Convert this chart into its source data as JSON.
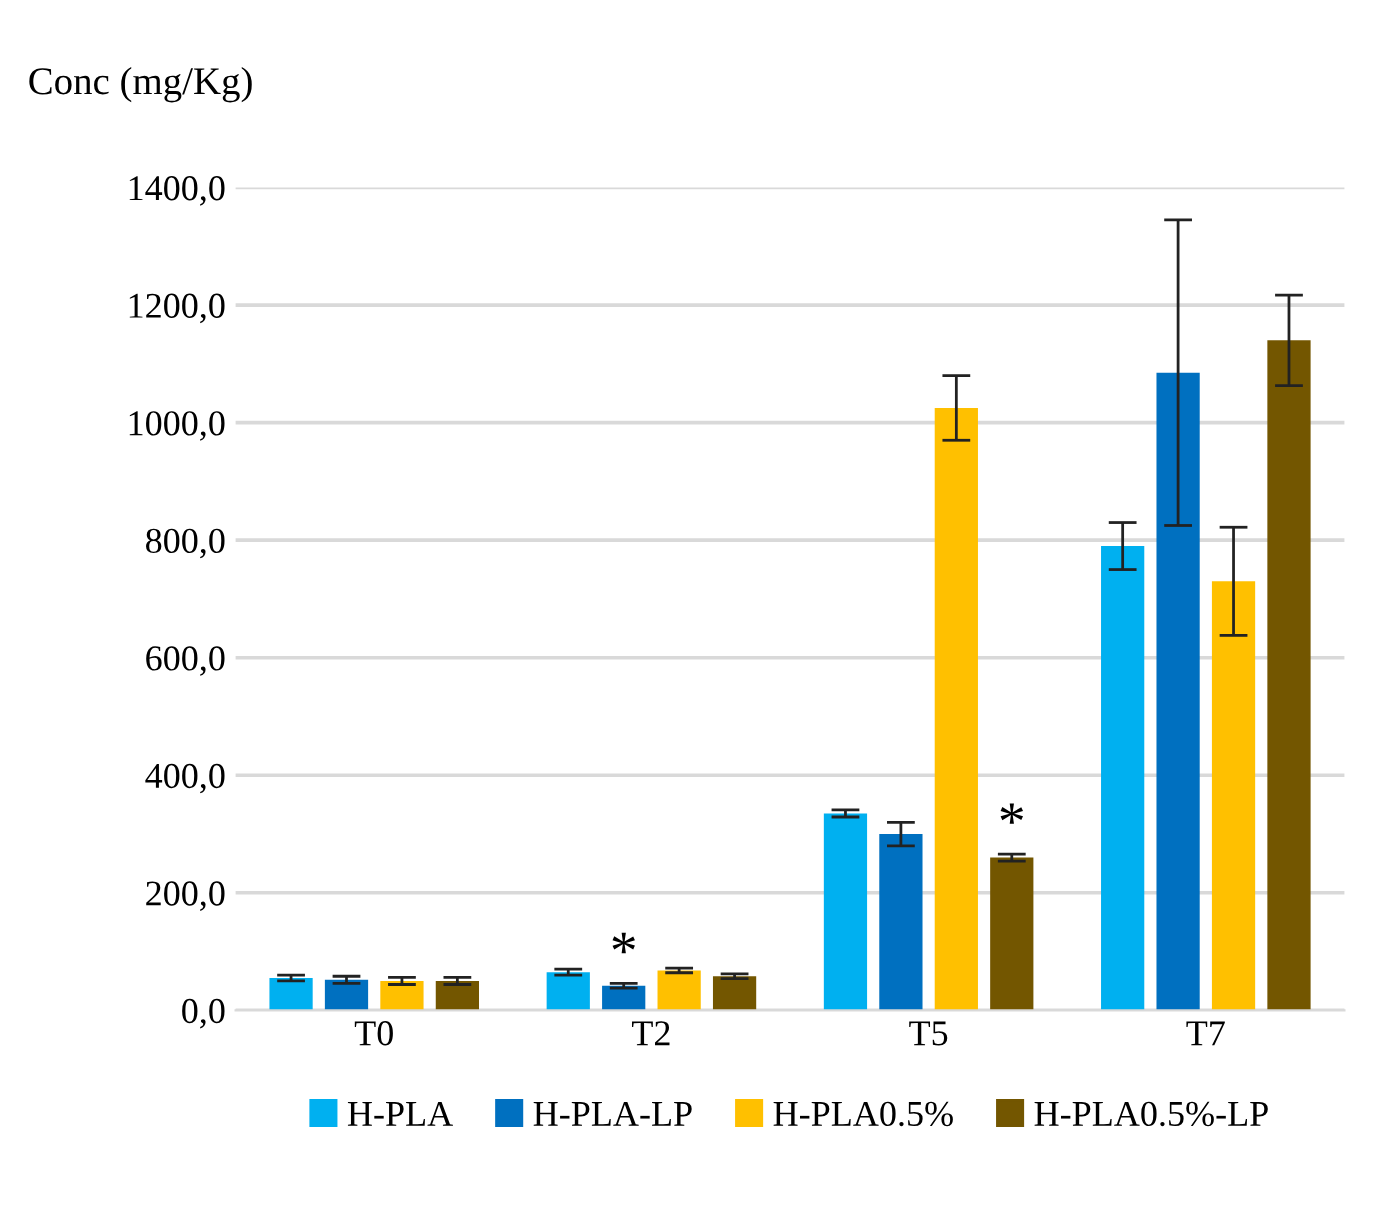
{
  "chart_data": {
    "type": "bar",
    "ylabel": "Conc (mg/Kg)",
    "categories": [
      "T0",
      "T2",
      "T5",
      "T7"
    ],
    "series": [
      {
        "name": "H-PLA",
        "color": "#00b0f0",
        "values": [
          55,
          65,
          335,
          790
        ],
        "errors": [
          5,
          5,
          6,
          40
        ]
      },
      {
        "name": "H-PLA-LP",
        "color": "#0070c0",
        "values": [
          52,
          42,
          300,
          1085
        ],
        "errors": [
          6,
          4,
          20,
          260
        ]
      },
      {
        "name": "H-PLA0.5%",
        "color": "#ffc000",
        "values": [
          50,
          68,
          1025,
          730
        ],
        "errors": [
          6,
          4,
          55,
          92
        ]
      },
      {
        "name": "H-PLA0.5%-LP",
        "color": "#735600",
        "values": [
          50,
          58,
          260,
          1140
        ],
        "errors": [
          6,
          4,
          6,
          77
        ]
      }
    ],
    "ylim": [
      0,
      1400
    ],
    "yticks": [
      {
        "value": 0,
        "label": "0,0"
      },
      {
        "value": 200,
        "label": "200,0"
      },
      {
        "value": 400,
        "label": "400,0"
      },
      {
        "value": 600,
        "label": "600,0"
      },
      {
        "value": 800,
        "label": "800,0"
      },
      {
        "value": 1000,
        "label": "1000,0"
      },
      {
        "value": 1200,
        "label": "1200,0"
      },
      {
        "value": 1400,
        "label": "1400,0"
      }
    ],
    "annotations": [
      {
        "text": "*",
        "x": "T2",
        "y": 50
      },
      {
        "text": "*",
        "x": "T5",
        "y": 270
      }
    ],
    "grid": "y",
    "legend": "bottom"
  }
}
